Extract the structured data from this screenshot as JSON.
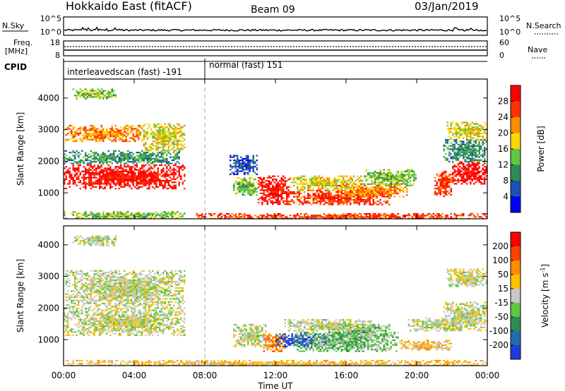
{
  "header": {
    "station": "Hokkaido East (fitACF)",
    "beam": "Beam 09",
    "date": "03/Jan/2019"
  },
  "top_panels": {
    "nsky_label": "N.Sky",
    "nsky_ticks": [
      "10^5",
      "10^0"
    ],
    "nsearch_label": "N.Search",
    "nsearch_ticks": [
      "10^5",
      "10^0"
    ],
    "freq_label": "Freq.",
    "freq_unit": "[MHz]",
    "freq_ticks": [
      "18",
      "8"
    ],
    "nave_label": "Nave",
    "nave_ticks": [
      "60",
      "0"
    ],
    "cpid_label": "CPID",
    "cpid_segments": [
      {
        "label": "interleavedscan (fast) -191",
        "start_hour": 0,
        "end_hour": 8
      },
      {
        "label": "normal (fast) 151",
        "start_hour": 8,
        "end_hour": 24
      }
    ]
  },
  "chart_data": [
    {
      "type": "heatmap",
      "name": "power",
      "ylabel": "Slant Range [km]",
      "xlabel": "",
      "x_ticks": [
        "00:00",
        "04:00",
        "08:00",
        "12:00",
        "16:00",
        "20:00",
        "00:00"
      ],
      "x_tick_hours": [
        0,
        4,
        8,
        12,
        16,
        20,
        24
      ],
      "xlim_hours": [
        0,
        24
      ],
      "ylim_km": [
        180,
        4600
      ],
      "y_ticks": [
        1000,
        2000,
        3000,
        4000
      ],
      "colorbar": {
        "label": "Power [dB]",
        "ticks": [
          "4",
          "8",
          "12",
          "16",
          "20",
          "24",
          "28"
        ],
        "colors": [
          "#0000ff",
          "#1f4fb4",
          "#2e8b57",
          "#60c840",
          "#ffd700",
          "#ff8c00",
          "#ff3300",
          "#ff0000"
        ]
      },
      "regions": [
        {
          "t0": 0.0,
          "t1": 6.9,
          "r0": 1150,
          "r1": 1900,
          "level": 7
        },
        {
          "t0": 0.0,
          "t1": 6.6,
          "r0": 1950,
          "r1": 2350,
          "level": 2
        },
        {
          "t0": 0.1,
          "t1": 4.5,
          "r0": 2650,
          "r1": 3150,
          "level": 5
        },
        {
          "t0": 4.5,
          "t1": 6.9,
          "r0": 2350,
          "r1": 3200,
          "level": 4
        },
        {
          "t0": 0.5,
          "t1": 3.0,
          "r0": 4000,
          "r1": 4300,
          "level": 3
        },
        {
          "t0": 0.0,
          "t1": 6.9,
          "r0": 180,
          "r1": 420,
          "level": 3
        },
        {
          "t0": 7.5,
          "t1": 24.0,
          "r0": 180,
          "r1": 360,
          "level": 6
        },
        {
          "t0": 9.6,
          "t1": 11.0,
          "r0": 950,
          "r1": 1500,
          "level": 3
        },
        {
          "t0": 11.0,
          "t1": 12.8,
          "r0": 650,
          "r1": 1550,
          "level": 7
        },
        {
          "t0": 12.6,
          "t1": 18.5,
          "r0": 650,
          "r1": 1100,
          "level": 6
        },
        {
          "t0": 12.8,
          "t1": 17.0,
          "r0": 1100,
          "r1": 1550,
          "level": 4
        },
        {
          "t0": 15.5,
          "t1": 19.5,
          "r0": 900,
          "r1": 1300,
          "level": 5
        },
        {
          "t0": 17.0,
          "t1": 20.0,
          "r0": 1250,
          "r1": 1750,
          "level": 3
        },
        {
          "t0": 9.4,
          "t1": 11.0,
          "r0": 1600,
          "r1": 2200,
          "level": 1
        },
        {
          "t0": 21.0,
          "t1": 22.0,
          "r0": 900,
          "r1": 1700,
          "level": 6
        },
        {
          "t0": 22.0,
          "t1": 24.0,
          "r0": 1300,
          "r1": 2000,
          "level": 7
        },
        {
          "t0": 21.7,
          "t1": 24.0,
          "r0": 2700,
          "r1": 3250,
          "level": 4
        },
        {
          "t0": 21.5,
          "t1": 24.0,
          "r0": 2000,
          "r1": 2700,
          "level": 2
        }
      ]
    },
    {
      "type": "heatmap",
      "name": "velocity",
      "ylabel": "Slant Range [km]",
      "xlabel": "Time UT",
      "x_ticks": [
        "00:00",
        "04:00",
        "08:00",
        "12:00",
        "16:00",
        "20:00",
        "00:00"
      ],
      "x_tick_hours": [
        0,
        4,
        8,
        12,
        16,
        20,
        24
      ],
      "xlim_hours": [
        0,
        24
      ],
      "ylim_km": [
        180,
        4600
      ],
      "y_ticks": [
        1000,
        2000,
        3000,
        4000
      ],
      "colorbar": {
        "label": "Velocity [m s^-1]",
        "ticks": [
          "200",
          "100",
          "50",
          "15",
          "-15",
          "-50",
          "-100",
          "-200"
        ],
        "colors": [
          "#1e3ce0",
          "#1f6fb0",
          "#2e8b57",
          "#60c840",
          "#c8c8c8",
          "#ffc000",
          "#ff8c00",
          "#ff4000",
          "#ff0000"
        ]
      },
      "regions": [
        {
          "t0": 0.0,
          "t1": 6.9,
          "r0": 1150,
          "r1": 2000,
          "level": 4
        },
        {
          "t0": 0.1,
          "t1": 6.9,
          "r0": 2000,
          "r1": 3200,
          "level": 4
        },
        {
          "t0": 0.5,
          "t1": 3.0,
          "r0": 4000,
          "r1": 4300,
          "level": 4
        },
        {
          "t0": 0.0,
          "t1": 24.0,
          "r0": 180,
          "r1": 360,
          "level": 5
        },
        {
          "t0": 9.6,
          "t1": 11.5,
          "r0": 800,
          "r1": 1500,
          "level": 4
        },
        {
          "t0": 11.3,
          "t1": 12.6,
          "r0": 650,
          "r1": 1200,
          "level": 6
        },
        {
          "t0": 12.0,
          "t1": 15.0,
          "r0": 800,
          "r1": 1200,
          "level": 0
        },
        {
          "t0": 13.0,
          "t1": 19.0,
          "r0": 650,
          "r1": 1250,
          "level": 3
        },
        {
          "t0": 15.0,
          "t1": 18.5,
          "r0": 1100,
          "r1": 1500,
          "level": 3
        },
        {
          "t0": 12.5,
          "t1": 17.5,
          "r0": 1300,
          "r1": 1650,
          "level": 4
        },
        {
          "t0": 19.5,
          "t1": 22.5,
          "r0": 1300,
          "r1": 1700,
          "level": 4
        },
        {
          "t0": 21.5,
          "t1": 24.0,
          "r0": 1300,
          "r1": 2200,
          "level": 4
        },
        {
          "t0": 21.7,
          "t1": 24.0,
          "r0": 2700,
          "r1": 3250,
          "level": 4
        },
        {
          "t0": 19.0,
          "t1": 22.0,
          "r0": 700,
          "r1": 1000,
          "level": 5
        }
      ]
    }
  ],
  "colors": {
    "frame": "#000000",
    "cpid_divider": "#aaaaaa"
  }
}
